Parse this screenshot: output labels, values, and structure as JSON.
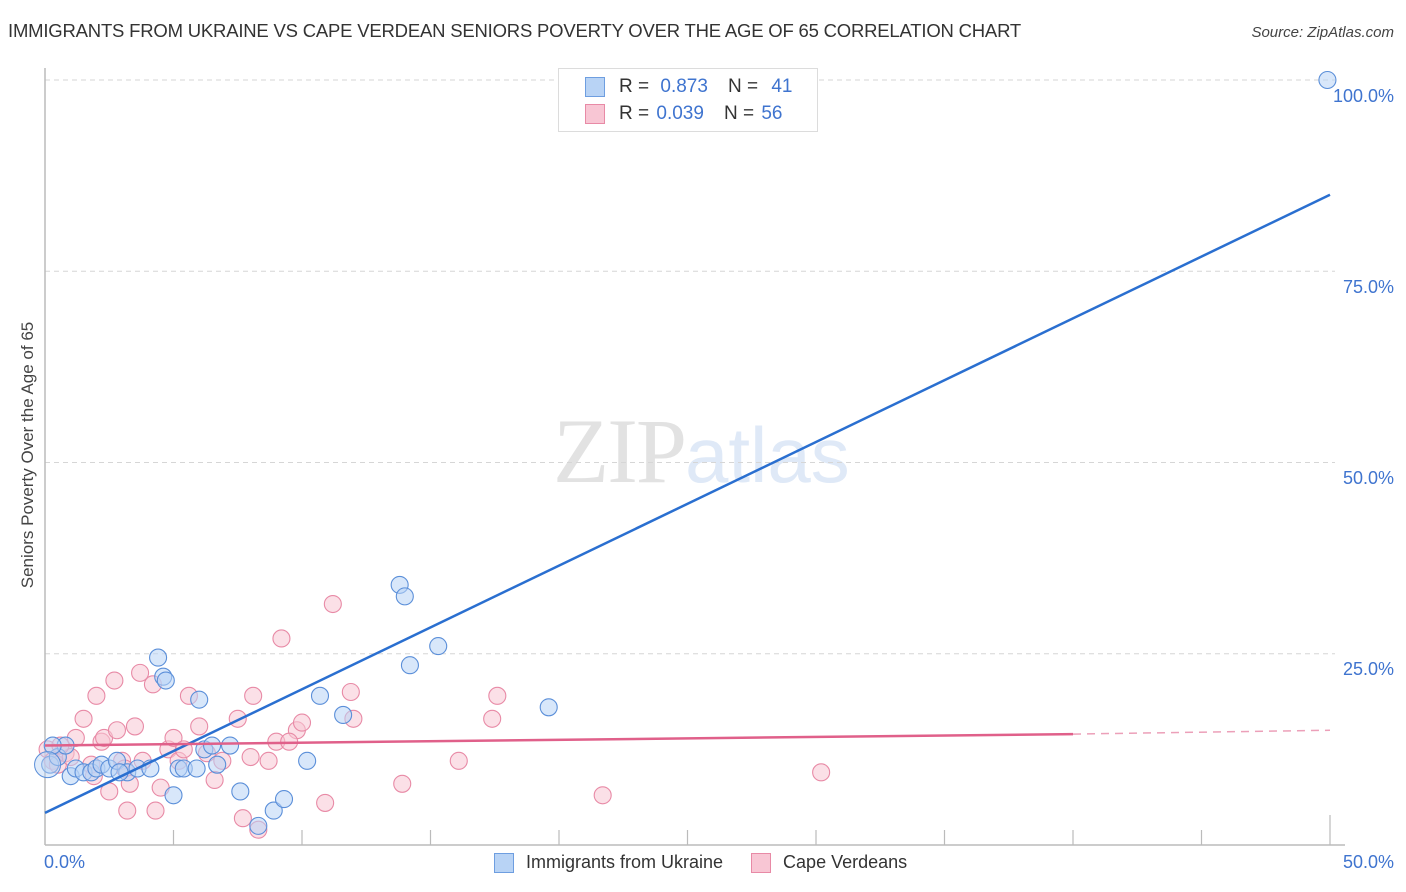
{
  "header": {
    "title": "IMMIGRANTS FROM UKRAINE VS CAPE VERDEAN SENIORS POVERTY OVER THE AGE OF 65 CORRELATION CHART",
    "source": "Source: ZipAtlas.com"
  },
  "legend_top": {
    "rows": [
      {
        "r_label": "R =",
        "r_value": "0.873",
        "n_label": "N =",
        "n_value": "41"
      },
      {
        "r_label": "R =",
        "r_value": "0.039",
        "n_label": "N =",
        "n_value": "56"
      }
    ]
  },
  "watermark": {
    "zip": "ZIP",
    "atlas": "atlas"
  },
  "colors": {
    "blue_fill": "#b8d3f5",
    "blue_stroke": "#5b8fd9",
    "blue_line": "#2a6fd0",
    "pink_fill": "#f8c6d4",
    "pink_stroke": "#e88aa6",
    "pink_line": "#e0608a",
    "tick_text": "#3f74cf"
  },
  "chart_data": {
    "type": "scatter",
    "title": "IMMIGRANTS FROM UKRAINE VS CAPE VERDEAN SENIORS POVERTY OVER THE AGE OF 65 CORRELATION CHART",
    "xlabel": "",
    "ylabel": "Seniors Poverty Over the Age of 65",
    "xlim": [
      0,
      50
    ],
    "ylim": [
      0,
      100
    ],
    "x_tick_labels": [
      "0.0%",
      "50.0%"
    ],
    "y_tick_labels": [
      "100.0%",
      "75.0%",
      "50.0%",
      "25.0%"
    ],
    "y_ticks": [
      100,
      75,
      50,
      25
    ],
    "grid": "horizontal dashed",
    "legend_position": "bottom center",
    "series": [
      {
        "name": "Immigrants from Ukraine",
        "color": "#b8d3f5",
        "R": 0.873,
        "N": 41,
        "trendline": {
          "x": [
            0,
            50
          ],
          "y": [
            4.2,
            85.0
          ],
          "style": "solid"
        },
        "points": [
          [
            0.2,
            10.5
          ],
          [
            0.5,
            11.5
          ],
          [
            0.8,
            13.0
          ],
          [
            1.0,
            9.0
          ],
          [
            1.2,
            10.0
          ],
          [
            1.5,
            9.5
          ],
          [
            1.8,
            9.5
          ],
          [
            2.0,
            10.0
          ],
          [
            2.2,
            10.5
          ],
          [
            2.5,
            10.0
          ],
          [
            2.8,
            11.0
          ],
          [
            3.2,
            9.5
          ],
          [
            3.6,
            10.0
          ],
          [
            4.1,
            10.0
          ],
          [
            4.4,
            24.5
          ],
          [
            4.6,
            22.0
          ],
          [
            4.7,
            21.5
          ],
          [
            5.0,
            6.5
          ],
          [
            5.2,
            10.0
          ],
          [
            5.4,
            10.0
          ],
          [
            5.9,
            10.0
          ],
          [
            6.0,
            19.0
          ],
          [
            6.2,
            12.5
          ],
          [
            6.5,
            13.0
          ],
          [
            6.7,
            10.5
          ],
          [
            7.2,
            13.0
          ],
          [
            7.6,
            7.0
          ],
          [
            8.3,
            2.5
          ],
          [
            8.9,
            4.5
          ],
          [
            9.3,
            6.0
          ],
          [
            10.2,
            11.0
          ],
          [
            10.7,
            19.5
          ],
          [
            11.6,
            17.0
          ],
          [
            13.8,
            34.0
          ],
          [
            14.0,
            32.5
          ],
          [
            14.2,
            23.5
          ],
          [
            15.3,
            26.0
          ],
          [
            19.6,
            18.0
          ],
          [
            49.9,
            100.0
          ],
          [
            0.3,
            13.0
          ],
          [
            2.9,
            9.5
          ]
        ]
      },
      {
        "name": "Cape Verdeans",
        "color": "#f8c6d4",
        "R": 0.039,
        "N": 56,
        "trendline": {
          "x": [
            0,
            40
          ],
          "y": [
            13.0,
            14.5
          ],
          "style": "solid",
          "extension": {
            "x": [
              40,
              50
            ],
            "y": [
              14.5,
              15.0
            ],
            "style": "dashed"
          }
        },
        "points": [
          [
            0.1,
            12.5
          ],
          [
            0.3,
            11.0
          ],
          [
            0.5,
            10.5
          ],
          [
            0.8,
            12.0
          ],
          [
            1.0,
            11.5
          ],
          [
            1.2,
            14.0
          ],
          [
            1.5,
            16.5
          ],
          [
            1.8,
            10.5
          ],
          [
            2.0,
            19.5
          ],
          [
            2.2,
            13.5
          ],
          [
            2.3,
            14.0
          ],
          [
            2.5,
            7.0
          ],
          [
            2.7,
            21.5
          ],
          [
            2.8,
            15.0
          ],
          [
            3.0,
            11.0
          ],
          [
            3.2,
            4.5
          ],
          [
            3.3,
            8.0
          ],
          [
            3.5,
            15.5
          ],
          [
            3.7,
            22.5
          ],
          [
            3.8,
            11.0
          ],
          [
            4.2,
            21.0
          ],
          [
            4.3,
            4.5
          ],
          [
            4.5,
            7.5
          ],
          [
            4.8,
            12.5
          ],
          [
            5.0,
            14.0
          ],
          [
            5.2,
            11.0
          ],
          [
            5.6,
            19.5
          ],
          [
            6.0,
            15.5
          ],
          [
            6.3,
            12.0
          ],
          [
            6.6,
            8.5
          ],
          [
            7.5,
            16.5
          ],
          [
            7.7,
            3.5
          ],
          [
            8.0,
            11.5
          ],
          [
            8.1,
            19.5
          ],
          [
            8.3,
            2.0
          ],
          [
            8.7,
            11.0
          ],
          [
            9.0,
            13.5
          ],
          [
            9.2,
            27.0
          ],
          [
            9.8,
            15.0
          ],
          [
            10.0,
            16.0
          ],
          [
            10.9,
            5.5
          ],
          [
            11.2,
            31.5
          ],
          [
            11.9,
            20.0
          ],
          [
            12.0,
            16.5
          ],
          [
            13.9,
            8.0
          ],
          [
            16.1,
            11.0
          ],
          [
            17.4,
            16.5
          ],
          [
            17.6,
            19.5
          ],
          [
            21.7,
            6.5
          ],
          [
            30.2,
            9.5
          ],
          [
            0.6,
            13.0
          ],
          [
            1.9,
            9.0
          ],
          [
            3.1,
            10.0
          ],
          [
            5.4,
            12.5
          ],
          [
            6.9,
            11.0
          ],
          [
            9.5,
            13.5
          ]
        ]
      }
    ]
  },
  "axis": {
    "y_label": "Seniors Poverty Over the Age of 65",
    "y_ticks": [
      {
        "label": "100.0%",
        "value": 100
      },
      {
        "label": "75.0%",
        "value": 75
      },
      {
        "label": "50.0%",
        "value": 50
      },
      {
        "label": "25.0%",
        "value": 25
      }
    ],
    "x_min_label": "0.0%",
    "x_max_label": "50.0%"
  },
  "legend_bottom": {
    "items": [
      {
        "label": "Immigrants from Ukraine"
      },
      {
        "label": "Cape Verdeans"
      }
    ]
  }
}
